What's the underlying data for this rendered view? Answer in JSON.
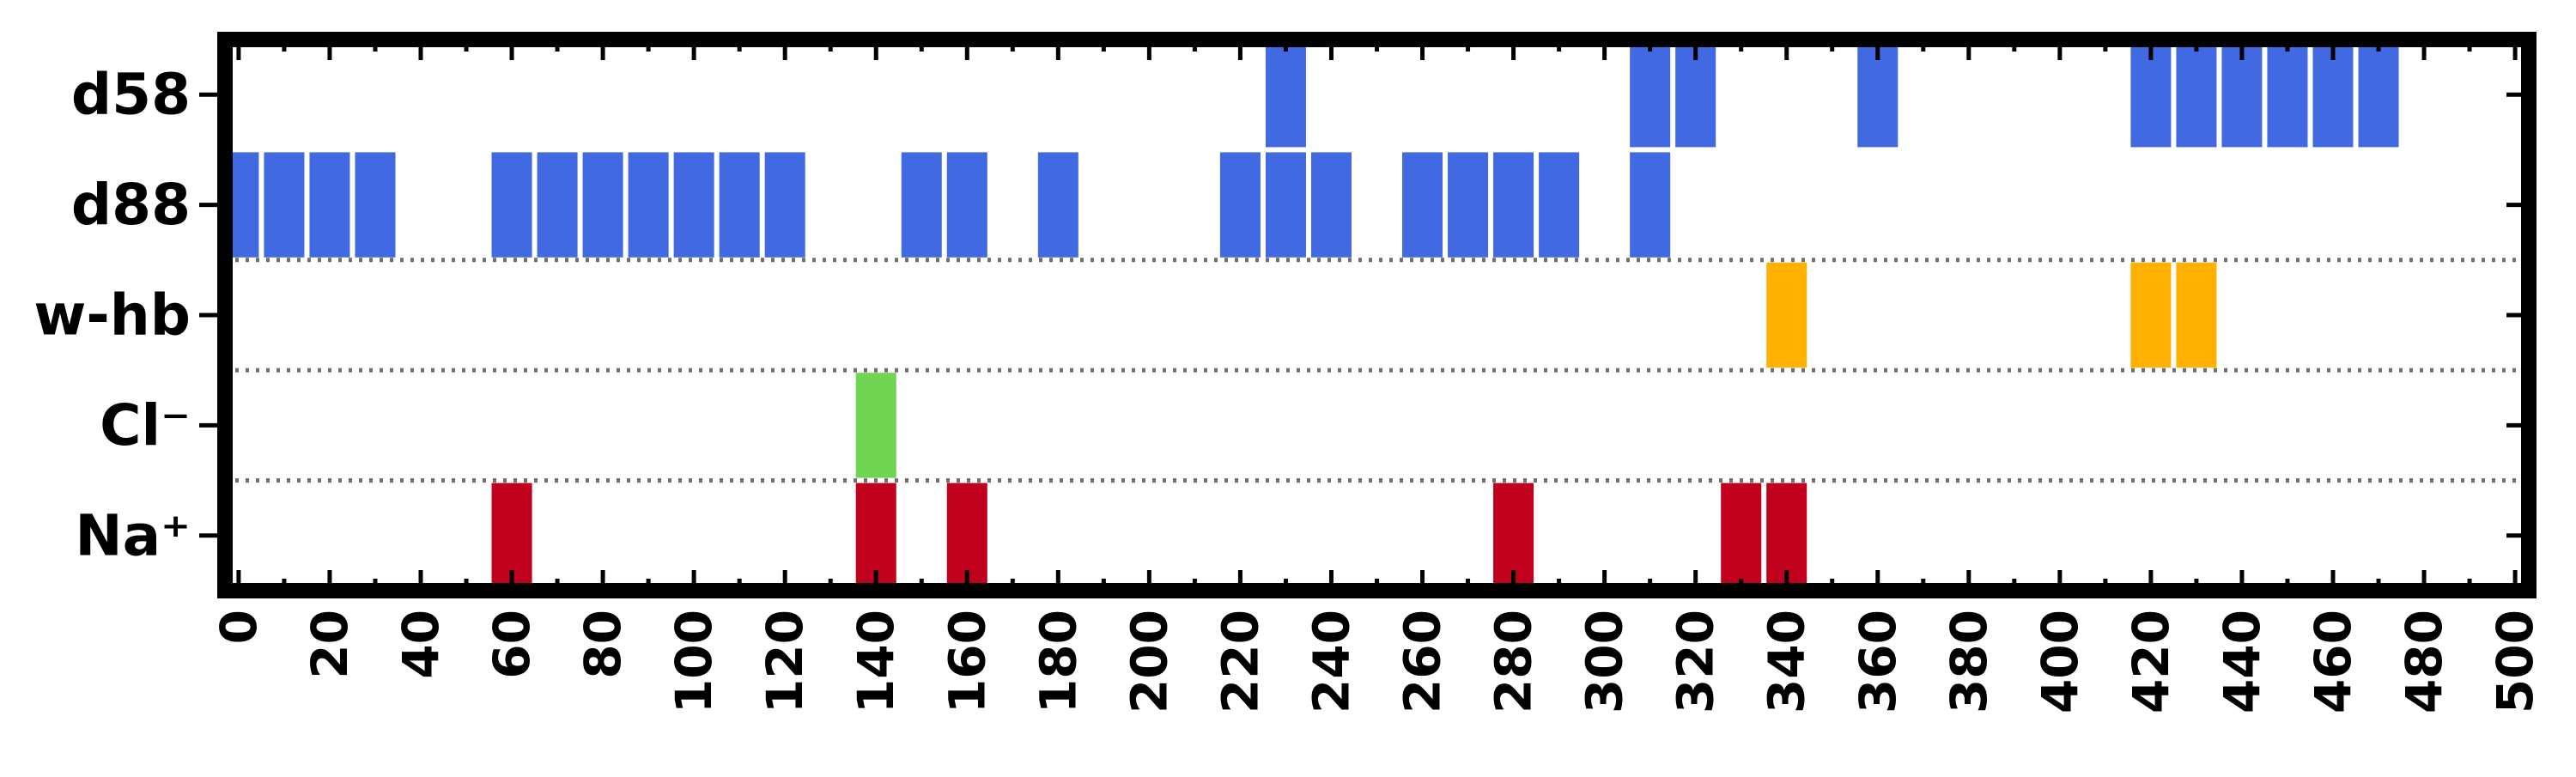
{
  "chart_data": {
    "type": "event-raster",
    "title": "",
    "xlabel": "",
    "ylabel": "",
    "xlim": [
      -3,
      503
    ],
    "x_ticks": [
      0,
      20,
      40,
      60,
      80,
      100,
      120,
      140,
      160,
      180,
      200,
      220,
      240,
      260,
      280,
      300,
      320,
      340,
      360,
      380,
      400,
      420,
      440,
      460,
      480,
      500
    ],
    "x_minor_step": 10,
    "rows": [
      "Na⁺",
      "Cl⁻",
      "w-hb",
      "d88",
      "d58"
    ],
    "row_separators": [
      0.5,
      1.5,
      2.5
    ],
    "bin_width": 10,
    "series": [
      {
        "label": "d58",
        "color": "#4169e1",
        "events": [
          230,
          310,
          320,
          360,
          420,
          430,
          440,
          450,
          460,
          470
        ]
      },
      {
        "label": "d88",
        "color": "#4169e1",
        "events": [
          0,
          10,
          20,
          30,
          60,
          70,
          80,
          90,
          100,
          110,
          120,
          150,
          160,
          180,
          220,
          230,
          240,
          260,
          270,
          280,
          290,
          310
        ]
      },
      {
        "label": "w-hb",
        "color": "#ffb000",
        "events": [
          340,
          420,
          430
        ]
      },
      {
        "label": "Cl⁻",
        "color": "#6fd451",
        "events": [
          140
        ]
      },
      {
        "label": "Na⁺",
        "color": "#c0001c",
        "events": [
          60,
          140,
          160,
          280,
          330,
          340
        ]
      }
    ]
  }
}
